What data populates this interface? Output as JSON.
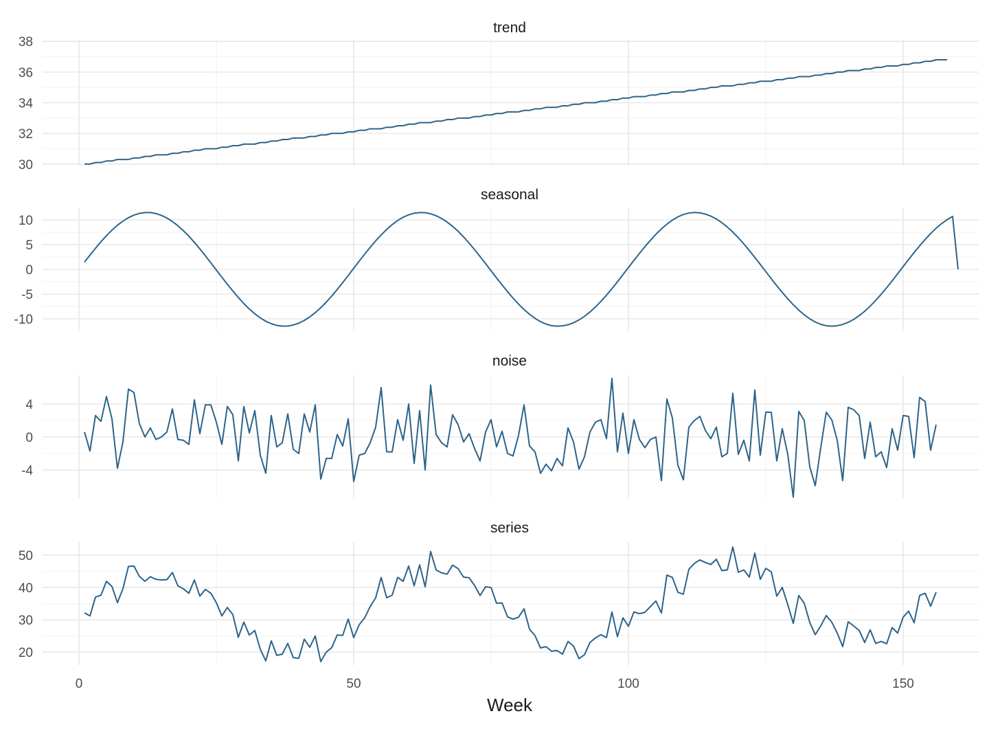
{
  "chart_data": {
    "type": "line",
    "x_label": "Week",
    "x_range": [
      1,
      156
    ],
    "x_ticks": [
      0,
      50,
      100,
      150
    ],
    "line_color": "#2c6389",
    "grid": true,
    "panels": [
      {
        "name": "trend",
        "y_ticks": [
          30,
          32,
          34,
          36,
          38
        ],
        "ylim": [
          29.9,
          38.1
        ],
        "values": [
          30.0,
          30.0,
          30.1,
          30.1,
          30.2,
          30.2,
          30.3,
          30.3,
          30.3,
          30.4,
          30.4,
          30.5,
          30.5,
          30.6,
          30.6,
          30.6,
          30.7,
          30.7,
          30.8,
          30.8,
          30.9,
          30.9,
          31.0,
          31.0,
          31.0,
          31.1,
          31.1,
          31.2,
          31.2,
          31.3,
          31.3,
          31.3,
          31.4,
          31.4,
          31.5,
          31.5,
          31.6,
          31.6,
          31.7,
          31.7,
          31.7,
          31.8,
          31.8,
          31.9,
          31.9,
          32.0,
          32.0,
          32.0,
          32.1,
          32.1,
          32.2,
          32.2,
          32.3,
          32.3,
          32.3,
          32.4,
          32.4,
          32.5,
          32.5,
          32.6,
          32.6,
          32.7,
          32.7,
          32.7,
          32.8,
          32.8,
          32.9,
          32.9,
          33.0,
          33.0,
          33.0,
          33.1,
          33.1,
          33.2,
          33.2,
          33.3,
          33.3,
          33.4,
          33.4,
          33.4,
          33.5,
          33.5,
          33.6,
          33.6,
          33.7,
          33.7,
          33.7,
          33.8,
          33.8,
          33.9,
          33.9,
          34.0,
          34.0,
          34.0,
          34.1,
          34.1,
          34.2,
          34.2,
          34.3,
          34.3,
          34.4,
          34.4,
          34.4,
          34.5,
          34.5,
          34.6,
          34.6,
          34.7,
          34.7,
          34.7,
          34.8,
          34.8,
          34.9,
          34.9,
          35.0,
          35.0,
          35.1,
          35.1,
          35.1,
          35.2,
          35.2,
          35.3,
          35.3,
          35.4,
          35.4,
          35.4,
          35.5,
          35.5,
          35.6,
          35.6,
          35.7,
          35.7,
          35.7,
          35.8,
          35.8,
          35.9,
          35.9,
          36.0,
          36.0,
          36.1,
          36.1,
          36.1,
          36.2,
          36.2,
          36.3,
          36.3,
          36.4,
          36.4,
          36.4,
          36.5,
          36.5,
          36.6,
          36.6,
          36.7,
          36.7,
          36.8,
          36.8,
          36.8
        ]
      },
      {
        "name": "seasonal",
        "y_ticks": [
          -10,
          -5,
          0,
          5,
          10
        ],
        "ylim": [
          -12.5,
          12.5
        ],
        "values": [
          1.45,
          2.88,
          4.26,
          5.58,
          6.8,
          7.92,
          8.91,
          9.75,
          10.44,
          10.96,
          11.31,
          11.48,
          11.47,
          11.28,
          10.91,
          10.38,
          9.67,
          8.81,
          7.82,
          6.69,
          5.46,
          4.13,
          2.74,
          1.31,
          -0.14,
          -1.59,
          -3.01,
          -4.38,
          -5.69,
          -6.91,
          -8.01,
          -8.99,
          -9.82,
          -10.49,
          -10.99,
          -11.33,
          -11.48,
          -11.46,
          -11.26,
          -10.88,
          -10.33,
          -9.62,
          -8.76,
          -7.76,
          -6.63,
          -5.4,
          -4.07,
          -2.67,
          -1.24,
          0.21,
          1.66,
          3.08,
          4.45,
          5.75,
          6.96,
          8.06,
          9.04,
          9.87,
          10.54,
          11.02,
          11.34,
          11.48,
          11.45,
          11.23,
          10.84,
          10.28,
          9.56,
          8.69,
          7.69,
          6.55,
          5.31,
          3.98,
          2.59,
          1.16,
          -0.29,
          -1.74,
          -3.15,
          -4.52,
          -5.82,
          -7.03,
          -8.12,
          -9.08,
          -9.91,
          -10.58,
          -11.06,
          -11.37,
          -11.49,
          -11.43,
          -11.2,
          -10.8,
          -10.23,
          -9.5,
          -8.62,
          -7.61,
          -6.47,
          -5.23,
          -3.9,
          -2.51,
          -1.08,
          0.37,
          1.81,
          3.22,
          4.59,
          5.88,
          7.08,
          8.17,
          9.13,
          9.95,
          10.61,
          11.08,
          11.38,
          11.49,
          11.42,
          11.17,
          10.76,
          10.18,
          9.44,
          8.55,
          7.53,
          6.39,
          5.14,
          3.81,
          2.42,
          0.99,
          -0.46,
          -1.9,
          -3.31,
          -4.67,
          -5.96,
          -7.16,
          -8.24,
          -9.19,
          -10.0,
          -10.65,
          -11.11,
          -11.4,
          -11.49,
          -11.4,
          -11.14,
          -10.71,
          -10.12,
          -9.37,
          -8.47,
          -7.44,
          -6.29,
          -5.04,
          -3.71,
          -2.32,
          -0.89,
          0.56,
          2.0,
          3.4,
          4.75,
          6.04,
          7.23,
          8.31,
          9.25,
          10.05,
          10.69,
          0.0
        ]
      },
      {
        "name": "noise",
        "y_ticks": [
          -4,
          0,
          4
        ],
        "ylim": [
          -7.5,
          7.5
        ],
        "values": [
          0.6,
          -1.7,
          2.6,
          1.9,
          4.9,
          2.2,
          -3.8,
          -0.6,
          5.8,
          5.4,
          1.6,
          0.0,
          1.1,
          -0.3,
          0.0,
          0.6,
          3.4,
          -0.3,
          -0.4,
          -0.9,
          4.5,
          0.4,
          3.9,
          3.9,
          1.8,
          -0.9,
          3.7,
          2.7,
          -2.9,
          3.7,
          0.5,
          3.2,
          -2.2,
          -4.4,
          2.6,
          -1.2,
          -0.7,
          2.8,
          -1.5,
          -2.0,
          2.8,
          0.6,
          3.9,
          -5.1,
          -2.6,
          -2.6,
          0.3,
          -1.1,
          2.2,
          -5.4,
          -2.2,
          -2.0,
          -0.7,
          1.2,
          6.0,
          -1.8,
          -1.8,
          2.1,
          -0.4,
          4.0,
          -3.2,
          3.2,
          -4.0,
          6.3,
          0.3,
          -0.7,
          -1.2,
          2.7,
          1.5,
          -0.6,
          0.4,
          -1.4,
          -2.9,
          0.6,
          2.1,
          -1.2,
          0.7,
          -2.0,
          -2.3,
          0.2,
          3.9,
          -1.1,
          -1.8,
          -4.4,
          -3.3,
          -4.1,
          -2.6,
          -3.5,
          1.1,
          -0.6,
          -3.9,
          -2.4,
          0.6,
          1.8,
          2.1,
          -0.2,
          7.1,
          -1.8,
          2.9,
          -2.0,
          2.1,
          -0.3,
          -1.3,
          -0.3,
          0.0,
          -5.3,
          4.6,
          2.3,
          -3.4,
          -5.2,
          1.2,
          2.0,
          2.5,
          0.8,
          -0.2,
          1.2,
          -2.4,
          -2.0,
          5.3,
          -2.1,
          -0.4,
          -2.9,
          5.7,
          -2.2,
          3.0,
          3.0,
          -2.9,
          1.0,
          -2.1,
          -7.3,
          3.1,
          2.0,
          -3.6,
          -5.9,
          -1.3,
          3.0,
          2.1,
          -0.4,
          -5.3,
          3.6,
          3.3,
          2.6,
          -2.6,
          1.8,
          -2.4,
          -1.8,
          -3.7,
          1.0,
          -1.6,
          2.6,
          2.5,
          -2.5,
          4.8,
          4.3,
          -1.6,
          1.5
        ]
      },
      {
        "name": "series",
        "y_ticks": [
          20,
          30,
          40,
          50
        ],
        "ylim": [
          16,
          54
        ],
        "values": [
          32.1,
          31.2,
          37.0,
          37.6,
          41.9,
          40.3,
          35.3,
          39.6,
          46.5,
          46.6,
          43.4,
          41.9,
          43.3,
          42.5,
          42.3,
          42.4,
          44.6,
          40.5,
          39.6,
          38.2,
          42.3,
          37.3,
          39.4,
          38.2,
          35.3,
          31.2,
          33.8,
          31.6,
          24.6,
          29.3,
          25.3,
          26.7,
          20.9,
          17.3,
          23.5,
          19.0,
          19.4,
          22.7,
          18.3,
          18.1,
          24.0,
          21.5,
          25.0,
          17.1,
          20.0,
          21.4,
          25.3,
          25.2,
          30.2,
          24.5,
          28.5,
          30.6,
          34.1,
          36.8,
          43.1,
          36.8,
          37.6,
          43.1,
          41.9,
          46.6,
          40.5,
          47.0,
          40.2,
          51.1,
          45.4,
          44.5,
          44.1,
          46.9,
          45.8,
          43.2,
          43.0,
          40.6,
          37.5,
          40.2,
          40.0,
          35.1,
          35.2,
          30.9,
          30.2,
          30.8,
          33.4,
          27.1,
          25.1,
          21.3,
          21.7,
          20.3,
          20.5,
          19.4,
          23.3,
          21.9,
          18.0,
          19.2,
          23.0,
          24.4,
          25.4,
          24.5,
          32.4,
          24.8,
          30.6,
          28.0,
          32.4,
          31.9,
          32.3,
          34.1,
          35.8,
          32.1,
          43.8,
          43.1,
          38.5,
          37.9,
          45.6,
          47.4,
          48.5,
          47.7,
          47.1,
          48.7,
          45.2,
          45.4,
          52.5,
          44.7,
          45.4,
          43.2,
          50.6,
          42.5,
          45.9,
          44.8,
          37.3,
          40.0,
          34.7,
          28.9,
          37.5,
          35.1,
          29.2,
          25.4,
          28.1,
          31.3,
          29.3,
          25.9,
          21.7,
          29.4,
          28.1,
          26.7,
          23.0,
          26.9,
          22.7,
          23.3,
          22.6,
          27.6,
          25.9,
          30.8,
          32.7,
          29.1,
          37.5,
          38.2,
          34.2,
          38.5
        ]
      }
    ]
  }
}
